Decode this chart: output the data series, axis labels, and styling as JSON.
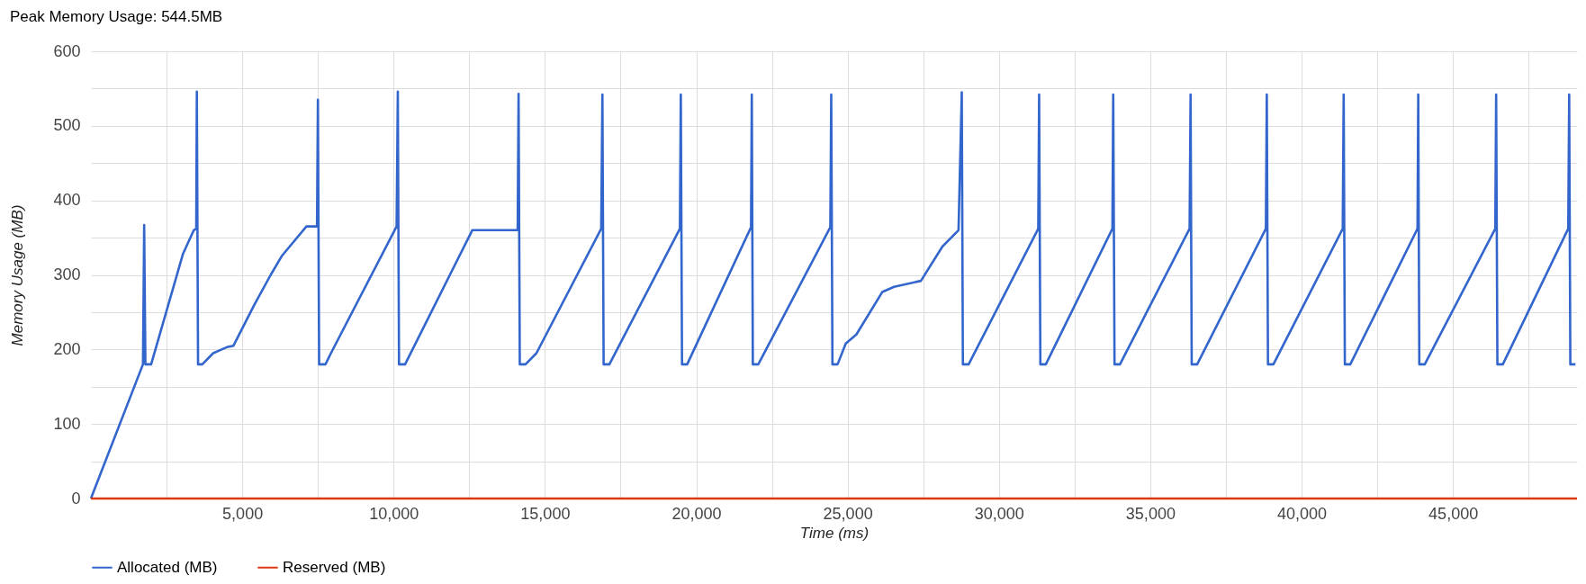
{
  "chart_data": {
    "type": "line",
    "title": "Peak Memory Usage: 544.5MB",
    "xlabel": "Time (ms)",
    "ylabel": "Memory Usage (MB)",
    "xlim": [
      0,
      49100
    ],
    "ylim": [
      0,
      600
    ],
    "xticks": [
      {
        "value": 2500,
        "label": null
      },
      {
        "value": 5000,
        "label": "5,000"
      },
      {
        "value": 7500,
        "label": null
      },
      {
        "value": 10000,
        "label": "10,000"
      },
      {
        "value": 12500,
        "label": null
      },
      {
        "value": 15000,
        "label": "15,000"
      },
      {
        "value": 17500,
        "label": null
      },
      {
        "value": 20000,
        "label": "20,000"
      },
      {
        "value": 22500,
        "label": null
      },
      {
        "value": 25000,
        "label": "25,000"
      },
      {
        "value": 27500,
        "label": null
      },
      {
        "value": 30000,
        "label": "30,000"
      },
      {
        "value": 32500,
        "label": null
      },
      {
        "value": 35000,
        "label": "35,000"
      },
      {
        "value": 37500,
        "label": null
      },
      {
        "value": 40000,
        "label": "40,000"
      },
      {
        "value": 42500,
        "label": null
      },
      {
        "value": 45000,
        "label": "45,000"
      },
      {
        "value": 47500,
        "label": null
      }
    ],
    "yticks": [
      0,
      {
        "value": 50,
        "label": null
      },
      100,
      {
        "value": 150,
        "label": null
      },
      200,
      {
        "value": 250,
        "label": null
      },
      300,
      {
        "value": 350,
        "label": null
      },
      400,
      {
        "value": 450,
        "label": null
      },
      500,
      {
        "value": 550,
        "label": null
      },
      600
    ],
    "grid": true,
    "legend": "bottom",
    "line_style": "solid",
    "marker": "none",
    "series": [
      {
        "name": "Allocated (MB)",
        "color": "#3366cc",
        "x": [
          0,
          1720,
          1760,
          1800,
          1990,
          3040,
          3400,
          3480,
          3500,
          3540,
          3680,
          4040,
          4490,
          4710,
          5400,
          5940,
          6300,
          7120,
          7470,
          7500,
          7540,
          7750,
          7930,
          10100,
          10140,
          10180,
          10380,
          12600,
          14100,
          14130,
          14170,
          14360,
          14720,
          16860,
          16900,
          16940,
          17130,
          19460,
          19490,
          19530,
          19700,
          21810,
          21836,
          21870,
          22050,
          24430,
          24460,
          24500,
          24670,
          24940,
          25290,
          26145,
          26536,
          27423,
          28133,
          28666,
          28773,
          28810,
          29000,
          31300,
          31329,
          31370,
          31550,
          33750,
          33777,
          33820,
          34000,
          36300,
          36333,
          36370,
          36550,
          38820,
          38851,
          38890,
          39070,
          41360,
          41391,
          41430,
          41610,
          43830,
          43855,
          43890,
          44070,
          46400,
          46429,
          46470,
          46650,
          48810,
          48842,
          48880,
          49050
        ],
        "values": [
          0,
          180,
          367,
          180,
          180,
          328,
          360,
          362,
          546,
          180,
          180,
          195,
          203,
          205,
          260,
          300,
          325,
          365,
          365,
          535,
          180,
          180,
          195,
          365,
          546,
          180,
          180,
          360,
          360,
          543,
          180,
          180,
          195,
          362,
          542,
          180,
          180,
          362,
          542,
          180,
          180,
          364,
          542,
          180,
          180,
          364,
          542,
          180,
          180,
          208,
          220,
          277,
          284,
          292,
          338,
          360,
          545,
          180,
          180,
          362,
          542,
          180,
          180,
          362,
          542,
          180,
          180,
          362,
          542,
          180,
          180,
          362,
          542,
          180,
          180,
          362,
          542,
          180,
          180,
          362,
          542,
          180,
          180,
          362,
          542,
          180,
          180,
          362,
          542,
          180,
          180
        ]
      },
      {
        "name": "Reserved (MB)",
        "color": "#dc3912",
        "x": [
          0,
          49100
        ],
        "values": [
          0,
          0
        ]
      }
    ]
  }
}
